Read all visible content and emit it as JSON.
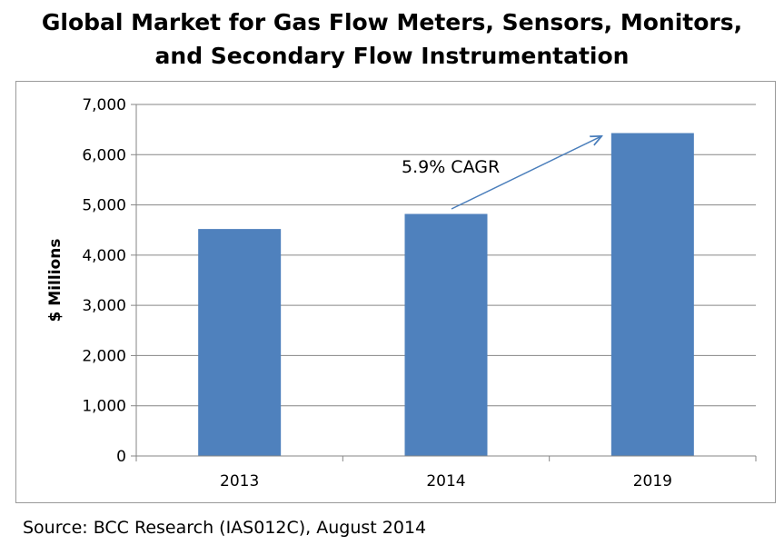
{
  "chart_data": {
    "type": "bar",
    "title_lines": [
      "Global Market for Gas Flow Meters, Sensors, Monitors,",
      "and Secondary Flow Instrumentation"
    ],
    "xlabel": "",
    "ylabel": "$ Millions",
    "categories": [
      "2013",
      "2014",
      "2019"
    ],
    "values": [
      4520,
      4820,
      6430
    ],
    "ylim": [
      0,
      7000
    ],
    "yticks": [
      0,
      1000,
      2000,
      3000,
      4000,
      5000,
      6000,
      7000
    ],
    "ytick_labels": [
      "0",
      "1,000",
      "2,000",
      "3,000",
      "4,000",
      "5,000",
      "6,000",
      "7,000"
    ],
    "grid": true,
    "legend": "none",
    "bar_color": "#4f81bd",
    "annotation": {
      "text": "5.9% CAGR",
      "arrow_from": {
        "category": "2014",
        "value": 4920
      },
      "arrow_to": {
        "category": "2019",
        "value": 6370
      }
    },
    "source": "Source: BCC Research (IAS012C), August 2014"
  }
}
